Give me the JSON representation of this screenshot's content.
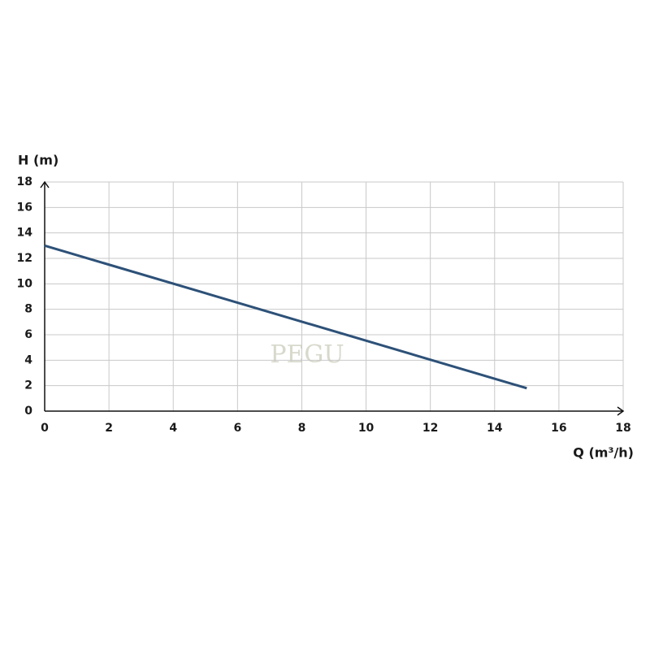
{
  "chart_data": {
    "type": "line",
    "ylabel": "H (m)",
    "xlabel": "Q (m³/h)",
    "x": [
      0,
      15
    ],
    "values": [
      13,
      1.8
    ],
    "color": "#2d5178",
    "xlim": [
      0,
      18
    ],
    "xticks": [
      0,
      2,
      4,
      6,
      8,
      10,
      12,
      14,
      16,
      18
    ],
    "ylim": [
      0,
      18
    ],
    "yticks": [
      0,
      2,
      4,
      6,
      8,
      10,
      12,
      14,
      16,
      18
    ],
    "grid": true,
    "watermark": "PEGU"
  }
}
